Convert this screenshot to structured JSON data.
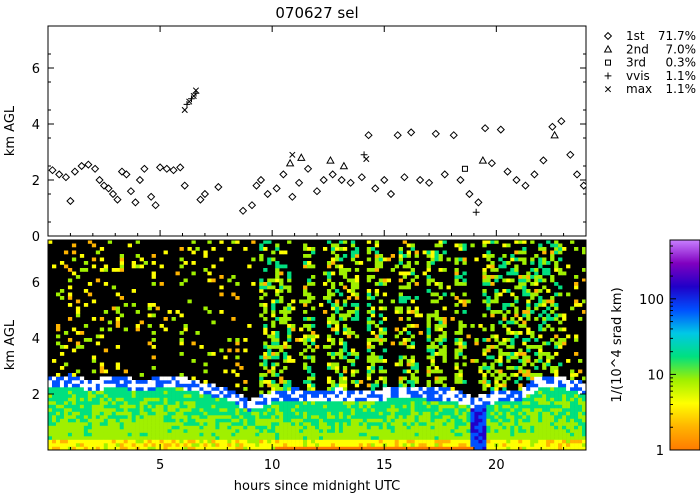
{
  "chart_data": [
    {
      "type": "scatter",
      "title": "070627 sel",
      "xlabel": "",
      "ylabel": "km AGL",
      "xlim": [
        0,
        24
      ],
      "ylim": [
        0,
        7.5
      ],
      "x_ticks": [
        5,
        10,
        15,
        20
      ],
      "y_ticks": [
        0,
        2,
        4,
        6
      ],
      "legend_position": "right",
      "series": [
        {
          "name": "1st",
          "percent": "71.7%",
          "marker": "diamond",
          "points": [
            [
              0.2,
              2.35
            ],
            [
              0.5,
              2.2
            ],
            [
              0.8,
              2.1
            ],
            [
              1.0,
              1.25
            ],
            [
              1.2,
              2.3
            ],
            [
              1.5,
              2.5
            ],
            [
              1.8,
              2.55
            ],
            [
              2.1,
              2.4
            ],
            [
              2.3,
              2.0
            ],
            [
              2.5,
              1.8
            ],
            [
              2.7,
              1.7
            ],
            [
              2.9,
              1.5
            ],
            [
              3.1,
              1.3
            ],
            [
              3.3,
              2.3
            ],
            [
              3.5,
              2.2
            ],
            [
              3.7,
              1.6
            ],
            [
              3.9,
              1.2
            ],
            [
              4.1,
              2.0
            ],
            [
              4.3,
              2.4
            ],
            [
              4.6,
              1.4
            ],
            [
              4.8,
              1.1
            ],
            [
              5.0,
              2.45
            ],
            [
              5.3,
              2.4
            ],
            [
              5.6,
              2.35
            ],
            [
              5.9,
              2.45
            ],
            [
              6.1,
              1.8
            ],
            [
              6.8,
              1.3
            ],
            [
              7.0,
              1.5
            ],
            [
              7.6,
              1.75
            ],
            [
              8.7,
              0.9
            ],
            [
              9.1,
              1.1
            ],
            [
              9.3,
              1.8
            ],
            [
              9.5,
              2.0
            ],
            [
              9.8,
              1.5
            ],
            [
              10.2,
              1.7
            ],
            [
              10.5,
              2.2
            ],
            [
              10.9,
              1.4
            ],
            [
              11.2,
              1.9
            ],
            [
              11.6,
              2.4
            ],
            [
              12.0,
              1.6
            ],
            [
              12.3,
              2.0
            ],
            [
              12.7,
              2.2
            ],
            [
              13.1,
              2.0
            ],
            [
              13.5,
              1.9
            ],
            [
              14.0,
              2.1
            ],
            [
              14.3,
              3.6
            ],
            [
              14.6,
              1.7
            ],
            [
              15.0,
              2.0
            ],
            [
              15.3,
              1.5
            ],
            [
              15.6,
              3.6
            ],
            [
              15.9,
              2.1
            ],
            [
              16.2,
              3.7
            ],
            [
              16.6,
              2.0
            ],
            [
              17.0,
              1.9
            ],
            [
              17.3,
              3.65
            ],
            [
              17.7,
              2.2
            ],
            [
              18.1,
              3.6
            ],
            [
              18.4,
              2.0
            ],
            [
              18.8,
              1.5
            ],
            [
              19.2,
              1.2
            ],
            [
              19.5,
              3.85
            ],
            [
              19.8,
              2.6
            ],
            [
              20.2,
              3.8
            ],
            [
              20.5,
              2.3
            ],
            [
              20.9,
              2.0
            ],
            [
              21.3,
              1.8
            ],
            [
              21.7,
              2.2
            ],
            [
              22.1,
              2.7
            ],
            [
              22.5,
              3.9
            ],
            [
              22.9,
              4.1
            ],
            [
              23.3,
              2.9
            ],
            [
              23.6,
              2.2
            ],
            [
              23.9,
              1.8
            ]
          ]
        },
        {
          "name": "2nd",
          "percent": "7.0%",
          "marker": "triangle",
          "points": [
            [
              10.8,
              2.6
            ],
            [
              11.3,
              2.8
            ],
            [
              12.6,
              2.7
            ],
            [
              13.2,
              2.5
            ],
            [
              19.4,
              2.7
            ],
            [
              22.6,
              3.6
            ]
          ]
        },
        {
          "name": "3rd",
          "percent": "0.3%",
          "marker": "square",
          "points": [
            [
              18.6,
              2.4
            ]
          ]
        },
        {
          "name": "vvis",
          "percent": "1.1%",
          "marker": "plus",
          "points": [
            [
              6.2,
              4.7
            ],
            [
              6.4,
              4.9
            ],
            [
              6.6,
              5.1
            ],
            [
              14.1,
              2.9
            ],
            [
              19.1,
              0.85
            ]
          ]
        },
        {
          "name": "max",
          "percent": "1.1%",
          "marker": "cross",
          "points": [
            [
              6.1,
              4.5
            ],
            [
              6.3,
              4.8
            ],
            [
              6.5,
              5.0
            ],
            [
              6.6,
              5.2
            ],
            [
              10.9,
              2.9
            ],
            [
              14.2,
              2.75
            ]
          ]
        }
      ]
    },
    {
      "type": "heatmap",
      "title": "",
      "xlabel": "hours since midnight UTC",
      "ylabel": "km AGL",
      "xlim": [
        0,
        24
      ],
      "ylim": [
        0,
        7.5
      ],
      "x_ticks": [
        5,
        10,
        15,
        20
      ],
      "y_ticks": [
        2,
        4,
        6
      ],
      "colorbar": {
        "label": "1/(10^4 srad km)",
        "scale": "log",
        "range": [
          1,
          600
        ],
        "ticks": [
          1,
          10,
          100
        ]
      }
    }
  ],
  "colors": {
    "background": "#ffffff",
    "axes": "#000000",
    "heatmap_background": "#000000",
    "colormap": [
      "#ff7a00",
      "#ffb400",
      "#ffff00",
      "#a0f000",
      "#00e080",
      "#00c8e6",
      "#0050ff",
      "#2000c8",
      "#8000c0",
      "#c880ff"
    ]
  }
}
